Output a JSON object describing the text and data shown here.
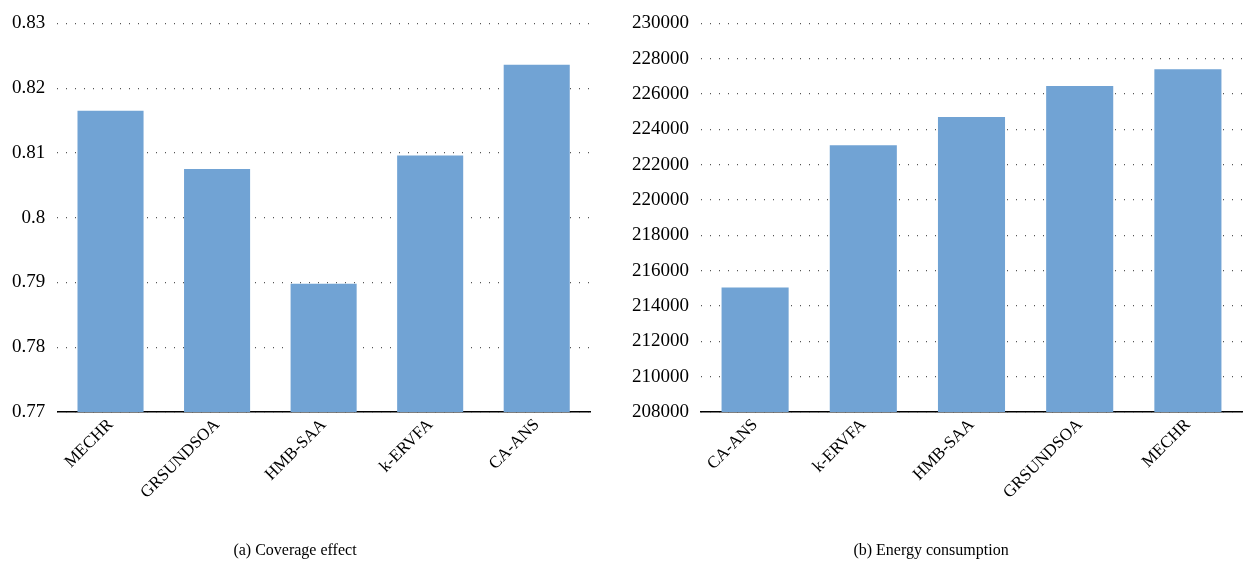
{
  "chart_data": [
    {
      "type": "bar",
      "title": "(a) Coverage effect",
      "categories": [
        "MECHR",
        "GRSUNDSOA",
        "HMB-SAA",
        "k-ERVFA",
        "CA-ANS"
      ],
      "values": [
        0.8165,
        0.8075,
        0.7898,
        0.8096,
        0.8236
      ],
      "color": "#71a3d4",
      "ylim": [
        0.77,
        0.83
      ],
      "yticks": [
        0.77,
        0.78,
        0.79,
        0.8,
        0.81,
        0.82,
        0.83
      ],
      "grid": "y"
    },
    {
      "type": "bar",
      "title": "(b) Energy consumption",
      "categories": [
        "CA-ANS",
        "k-ERVFA",
        "HMB-SAA",
        "GRSUNDSOA",
        "MECHR"
      ],
      "values": [
        215040,
        223100,
        224700,
        226450,
        227400
      ],
      "color": "#71a3d4",
      "ylim": [
        208000,
        230000
      ],
      "yticks": [
        208000,
        210000,
        212000,
        214000,
        216000,
        218000,
        220000,
        222000,
        224000,
        226000,
        228000,
        230000
      ],
      "grid": "y"
    }
  ]
}
